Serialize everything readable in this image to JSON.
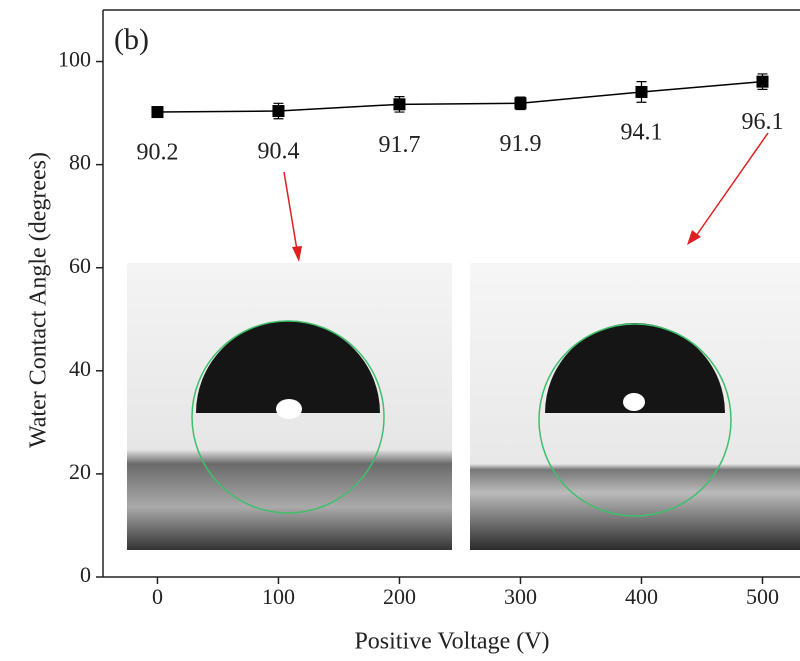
{
  "chart_data": {
    "type": "line",
    "title": "(b)",
    "x_label": "Positive Voltage (V)",
    "y_label": "Water Contact Angle (degrees)",
    "x": [
      0,
      100,
      200,
      300,
      400,
      500
    ],
    "series": [
      {
        "color": "#000000",
        "values": [
          90.2,
          90.4,
          91.7,
          91.9,
          94.1,
          96.1
        ],
        "errors": [
          1.0,
          1.5,
          1.5,
          1.2,
          2.0,
          1.5
        ]
      }
    ],
    "xlim": [
      -45,
      531
    ],
    "ylim": [
      0,
      110
    ],
    "xticks": [
      0,
      100,
      200,
      300,
      400,
      500
    ],
    "yticks": [
      0,
      20,
      40,
      60,
      80,
      100
    ]
  }
}
